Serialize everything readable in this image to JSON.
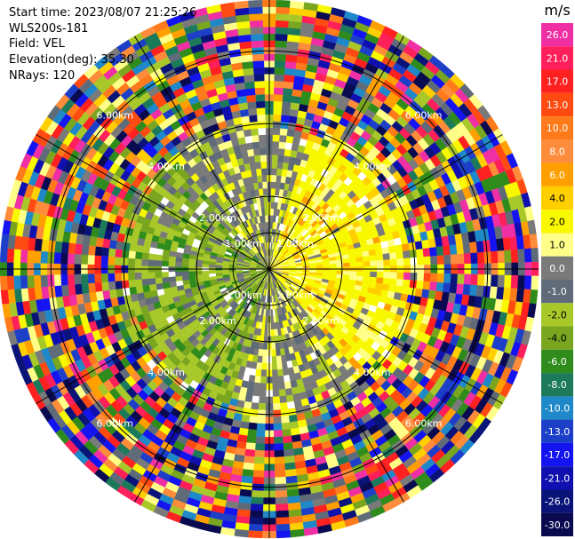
{
  "header": {
    "start_time": "Start time: 2023/08/07 21:25:26",
    "instrument": "WLS200s-181",
    "field": "Field: VEL",
    "elevation": "Elevation(deg): 35.30",
    "nrays": "NRays: 120"
  },
  "chart_data": {
    "type": "heatmap",
    "title": "",
    "plot": "PPI (plan position indicator), polar",
    "field": "VEL",
    "units": "m/s",
    "elevation_deg": 35.3,
    "n_rays": 120,
    "range_rings_km": [
      1.0,
      2.0,
      4.0,
      6.0
    ],
    "range_ring_labels": [
      "1.00km",
      "2.00km",
      "4.00km",
      "6.00km"
    ],
    "max_range_km": 7.4,
    "n_range_gates": 40,
    "azimuth_spokes_deg": [
      0,
      30,
      60,
      90,
      120,
      150,
      180,
      210,
      240,
      270,
      300,
      330
    ],
    "colorbar": {
      "label": "m/s",
      "ticks": [
        "26.0",
        "21.0",
        "17.0",
        "13.0",
        "10.0",
        "8.0",
        "6.0",
        "4.0",
        "2.0",
        "1.0",
        "0.0",
        "-1.0",
        "-2.0",
        "-4.0",
        "-6.0",
        "-8.0",
        "-10.0",
        "-13.0",
        "-17.0",
        "-21.0",
        "-26.0",
        "-30.0"
      ],
      "colors": [
        "#f02fa5",
        "#ff1f5a",
        "#ff2020",
        "#ff4b12",
        "#ff7a1a",
        "#ff8c3a",
        "#ffa000",
        "#ffcf00",
        "#f8f800",
        "#ffff88",
        "#7a7a7a",
        "#5f6b78",
        "#a8c82a",
        "#79a51f",
        "#2f8c1c",
        "#1c7a5a",
        "#1e88c8",
        "#1d3fc8",
        "#1414f0",
        "#1010b0",
        "#0a1478",
        "#0a0a50"
      ]
    },
    "pattern": {
      "near_field_km": 3.6,
      "positive_sector": "north-east to south-east (approaching/receding +1..+4 m/s, yellow)",
      "negative_sector": "west to south-west (-1..-6 m/s, green)",
      "far_field": "noise (all colors) beyond ~4 km"
    }
  }
}
